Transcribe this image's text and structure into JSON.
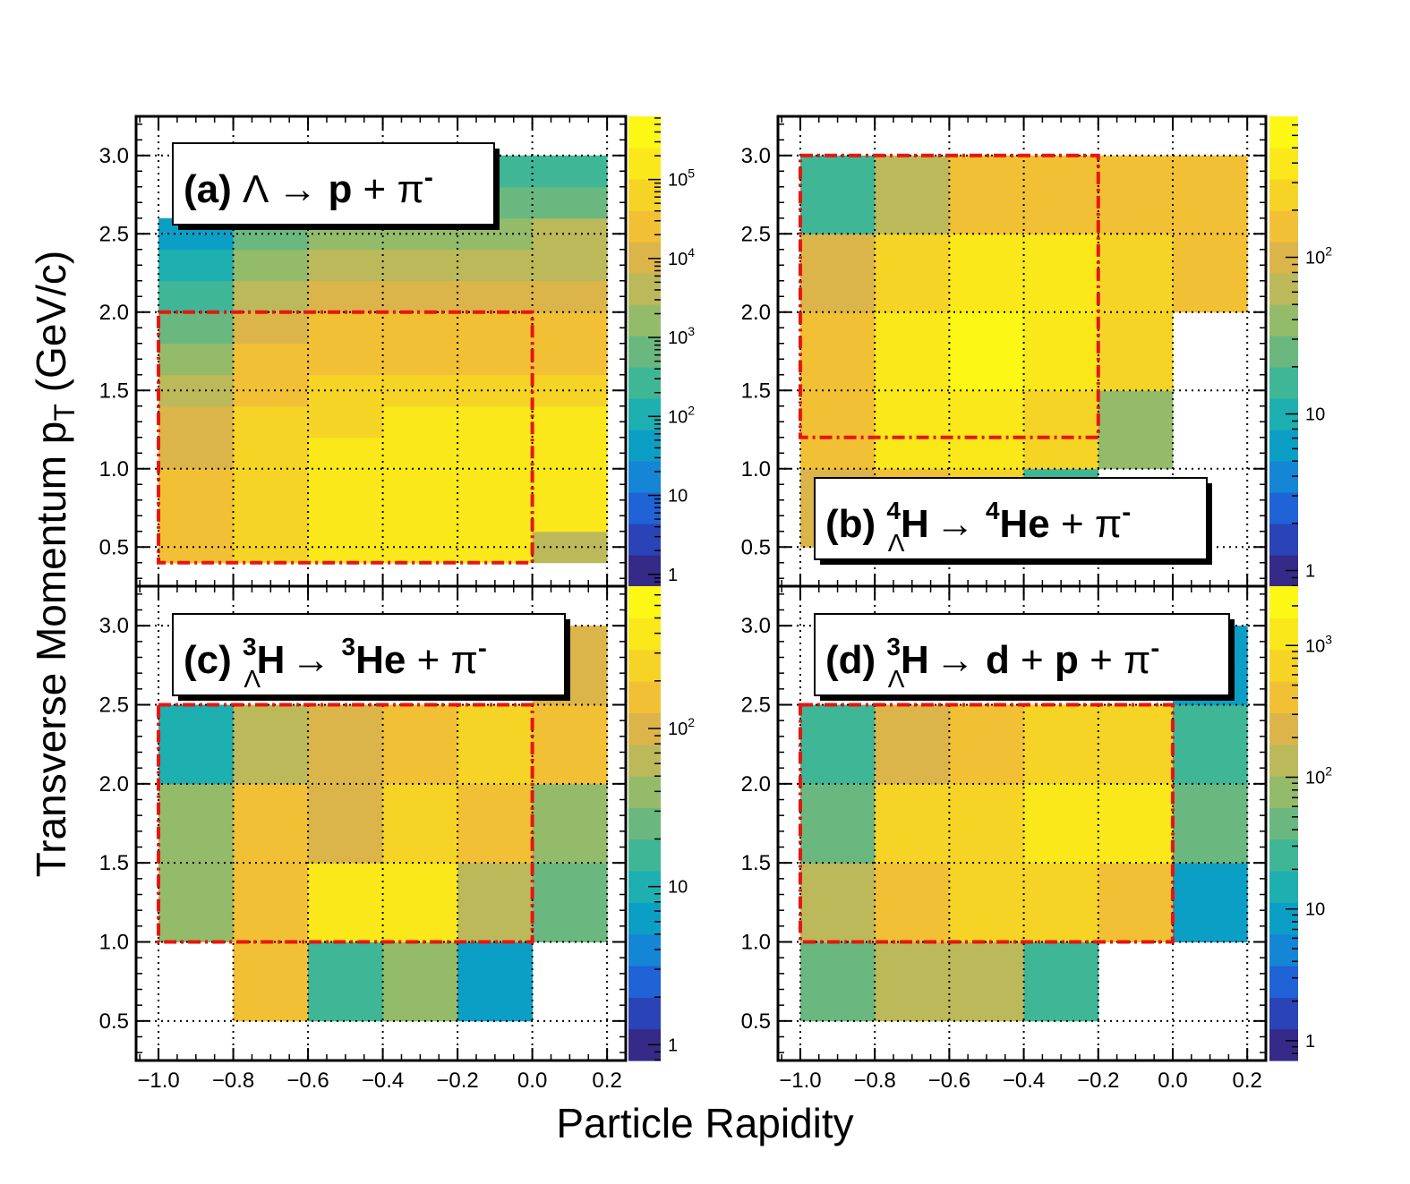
{
  "figure": {
    "xlabel": "Particle Rapidity",
    "ylabel": "Transverse Momentum p_T (GeV/c)",
    "ylabel_main": "Transverse Momentum p",
    "ylabel_sub": "T",
    "ylabel_unit": "(GeV/c)"
  },
  "axes": {
    "x_ticks": [
      "−1.0",
      "−0.8",
      "−0.6",
      "−0.4",
      "−0.2",
      "0.0",
      "0.2"
    ],
    "x_tick_values": [
      -1.0,
      -0.8,
      -0.6,
      -0.4,
      -0.2,
      0.0,
      0.2
    ],
    "y_ticks": [
      "0.5",
      "1.0",
      "1.5",
      "2.0",
      "2.5",
      "3.0"
    ],
    "y_tick_values": [
      0.5,
      1.0,
      1.5,
      2.0,
      2.5,
      3.0
    ],
    "xlim": [
      -1.06,
      0.25
    ],
    "ylim": [
      0.25,
      3.25
    ],
    "grid": true,
    "colormap": [
      "#352a87",
      "#2a44b8",
      "#1f63d6",
      "#1585d6",
      "#0c9fc6",
      "#1eafb0",
      "#3fb797",
      "#6ab87f",
      "#94bb6a",
      "#bcb95a",
      "#dcb54a",
      "#f2c035",
      "#f6d426",
      "#fae81a",
      "#fcf714"
    ]
  },
  "chart_data": [
    {
      "type": "heatmap",
      "panel": "(a)",
      "label_parts": {
        "tag": "(a)",
        "parent": "Λ",
        "arrow": "→",
        "d1": "p",
        "plus1": "+",
        "d2": "π",
        "d2_sup": "-"
      },
      "x_edges": [
        -1.0,
        -0.8,
        -0.6,
        -0.4,
        -0.2,
        0.0,
        0.2
      ],
      "y_edges": [
        0.4,
        0.6,
        0.8,
        1.0,
        1.2,
        1.4,
        1.6,
        1.8,
        2.0,
        2.2,
        2.4,
        2.6,
        2.8,
        3.0
      ],
      "z_log10": [
        [
          4.5,
          4.8,
          5.1,
          5.1,
          5.1,
          3.5
        ],
        [
          4.5,
          5.0,
          5.4,
          5.4,
          5.4,
          5.3
        ],
        [
          4.4,
          4.9,
          5.4,
          5.4,
          5.4,
          5.3
        ],
        [
          4.2,
          4.8,
          5.2,
          5.3,
          5.3,
          5.2
        ],
        [
          4.0,
          4.7,
          5.0,
          5.1,
          5.2,
          5.1
        ],
        [
          3.7,
          4.5,
          4.8,
          4.9,
          4.9,
          4.9
        ],
        [
          3.3,
          4.3,
          4.5,
          4.6,
          4.6,
          4.6
        ],
        [
          2.9,
          4.0,
          4.3,
          4.3,
          4.3,
          4.3
        ],
        [
          2.4,
          3.6,
          4.0,
          4.0,
          4.0,
          4.0
        ],
        [
          2.0,
          3.3,
          3.7,
          3.7,
          3.7,
          3.8
        ],
        [
          1.6,
          2.8,
          3.3,
          3.3,
          3.4,
          3.5
        ],
        [
          null,
          2.4,
          2.8,
          2.9,
          3.0,
          3.0
        ],
        [
          null,
          1.7,
          2.1,
          2.2,
          2.3,
          2.4
        ]
      ],
      "zlim_log10": [
        -0.15,
        5.8
      ],
      "colorbar_ticks": [
        {
          "v": 0,
          "label": "1"
        },
        {
          "v": 1,
          "label": "10"
        },
        {
          "v": 2,
          "label": "10",
          "sup": "2"
        },
        {
          "v": 3,
          "label": "10",
          "sup": "3"
        },
        {
          "v": 4,
          "label": "10",
          "sup": "4"
        },
        {
          "v": 5,
          "label": "10",
          "sup": "5"
        }
      ],
      "region_box": {
        "x": [
          -1.0,
          0.0
        ],
        "y": [
          0.4,
          2.0
        ]
      }
    },
    {
      "type": "heatmap",
      "panel": "(b)",
      "label_parts": {
        "tag": "(b)",
        "pre_sup": "4",
        "parent": "H",
        "parent_sub": "Λ",
        "arrow": "→",
        "d1_pre_sup": "4",
        "d1": "He",
        "plus1": "+",
        "d2": "π",
        "d2_sup": "-"
      },
      "x_edges": [
        -1.0,
        -0.8,
        -0.6,
        -0.4,
        -0.2,
        0.0,
        0.2
      ],
      "y_edges": [
        0.5,
        1.0,
        1.5,
        2.0,
        2.5,
        3.0
      ],
      "z_log10": [
        [
          1.9,
          2.3,
          2.4,
          1.1,
          null,
          null
        ],
        [
          2.3,
          2.5,
          2.6,
          2.4,
          1.5,
          null
        ],
        [
          2.2,
          2.5,
          2.7,
          2.6,
          2.4,
          null
        ],
        [
          1.95,
          2.45,
          2.5,
          2.5,
          2.35,
          2.2
        ],
        [
          1.2,
          1.8,
          2.2,
          2.2,
          2.3,
          2.25
        ]
      ],
      "zlim_log10": [
        -0.1,
        2.9
      ],
      "colorbar_ticks": [
        {
          "v": 0,
          "label": "1"
        },
        {
          "v": 1,
          "label": "10"
        },
        {
          "v": 2,
          "label": "10",
          "sup": "2"
        }
      ],
      "region_box": {
        "x": [
          -1.0,
          -0.2
        ],
        "y": [
          1.2,
          3.0
        ]
      }
    },
    {
      "type": "heatmap",
      "panel": "(c)",
      "label_parts": {
        "tag": "(c)",
        "pre_sup": "3",
        "parent": "H",
        "parent_sub": "Λ",
        "arrow": "→",
        "d1_pre_sup": "3",
        "d1": "He",
        "plus1": "+",
        "d2": "π",
        "d2_sup": "-"
      },
      "x_edges": [
        -1.0,
        -0.8,
        -0.6,
        -0.4,
        -0.2,
        0.0,
        0.2
      ],
      "y_edges": [
        0.5,
        1.0,
        1.5,
        2.0,
        2.5,
        3.0
      ],
      "z_log10": [
        [
          null,
          2.1,
          1.1,
          1.6,
          0.8,
          null
        ],
        [
          1.6,
          2.3,
          2.6,
          2.55,
          1.8,
          1.3
        ],
        [
          1.5,
          2.15,
          1.9,
          2.4,
          2.25,
          1.6
        ],
        [
          1.05,
          1.8,
          2.05,
          2.2,
          2.35,
          2.25
        ],
        [
          null,
          null,
          null,
          null,
          null,
          2.05
        ]
      ],
      "zlim_log10": [
        -0.1,
        2.9
      ],
      "colorbar_ticks": [
        {
          "v": 0,
          "label": "1"
        },
        {
          "v": 1,
          "label": "10"
        },
        {
          "v": 2,
          "label": "10",
          "sup": "2"
        }
      ],
      "region_box": {
        "x": [
          -1.0,
          0.0
        ],
        "y": [
          1.0,
          2.5
        ]
      }
    },
    {
      "type": "heatmap",
      "panel": "(d)",
      "label_parts": {
        "tag": "(d)",
        "pre_sup": "3",
        "parent": "H",
        "parent_sub": "Λ",
        "arrow": "→",
        "d1": "d",
        "plus1": "+",
        "d2": "p",
        "plus2": "+",
        "d3": "π",
        "d3_sup": "-"
      },
      "x_edges": [
        -1.0,
        -0.8,
        -0.6,
        -0.4,
        -0.2,
        0.0,
        0.2
      ],
      "y_edges": [
        0.5,
        1.0,
        1.5,
        2.0,
        2.5,
        3.0
      ],
      "z_log10": [
        [
          1.75,
          2.1,
          2.05,
          1.45,
          null,
          null
        ],
        [
          2.15,
          2.65,
          2.85,
          2.85,
          2.6,
          1.0
        ],
        [
          1.7,
          2.8,
          2.95,
          3.2,
          3.05,
          1.55
        ],
        [
          1.35,
          2.3,
          2.6,
          2.85,
          2.8,
          1.4
        ],
        [
          null,
          null,
          null,
          null,
          null,
          0.95
        ]
      ],
      "zlim_log10": [
        -0.15,
        3.45
      ],
      "colorbar_ticks": [
        {
          "v": 0,
          "label": "1"
        },
        {
          "v": 1,
          "label": "10"
        },
        {
          "v": 2,
          "label": "10",
          "sup": "2"
        },
        {
          "v": 3,
          "label": "10",
          "sup": "3"
        }
      ],
      "region_box": {
        "x": [
          -1.0,
          0.0
        ],
        "y": [
          1.0,
          2.5
        ]
      }
    }
  ]
}
